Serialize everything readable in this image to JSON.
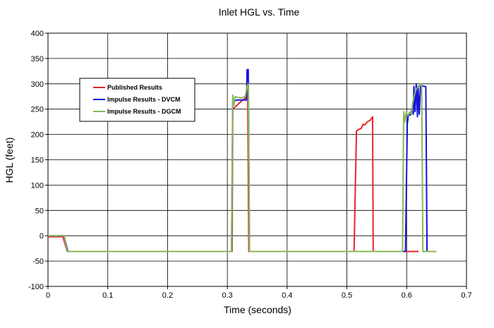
{
  "chart_data": {
    "type": "line",
    "title": "Inlet HGL vs. Time",
    "xlabel": "Time (seconds)",
    "ylabel": "HGL (feet)",
    "xlim": [
      0,
      0.7
    ],
    "ylim": [
      -100,
      400
    ],
    "xticks": [
      0,
      0.1,
      0.2,
      0.3,
      0.4,
      0.5,
      0.6,
      0.7
    ],
    "xtick_labels": [
      "0",
      "0.1",
      "0.2",
      "0.3",
      "0.4",
      "0.5",
      "0.6",
      "0.7"
    ],
    "yticks": [
      -100,
      -50,
      0,
      50,
      100,
      150,
      200,
      250,
      300,
      350,
      400
    ],
    "ytick_labels": [
      "-100",
      "-50",
      "0",
      "50",
      "100",
      "150",
      "200",
      "250",
      "300",
      "350",
      "400"
    ],
    "grid": true,
    "legend_position": "upper-left",
    "series": [
      {
        "name": "Published Results",
        "color": "#e8242a",
        "points": [
          [
            0,
            -2
          ],
          [
            0.025,
            -2
          ],
          [
            0.032,
            -31
          ],
          [
            0.308,
            -31
          ],
          [
            0.309,
            250
          ],
          [
            0.32,
            262
          ],
          [
            0.33,
            272
          ],
          [
            0.334,
            290
          ],
          [
            0.336,
            -31
          ],
          [
            0.512,
            -31
          ],
          [
            0.516,
            207
          ],
          [
            0.52,
            210
          ],
          [
            0.524,
            212
          ],
          [
            0.527,
            220
          ],
          [
            0.53,
            219
          ],
          [
            0.534,
            225
          ],
          [
            0.539,
            228
          ],
          [
            0.543,
            235
          ],
          [
            0.544,
            -31
          ],
          [
            0.6,
            -31
          ],
          [
            0.62,
            -31
          ]
        ]
      },
      {
        "name": "Impulse Results - DVCM",
        "color": "#1414e0",
        "points": [
          [
            0,
            0
          ],
          [
            0.027,
            0
          ],
          [
            0.033,
            -31
          ],
          [
            0.307,
            -31
          ],
          [
            0.309,
            265
          ],
          [
            0.316,
            268
          ],
          [
            0.332,
            268
          ],
          [
            0.333,
            328
          ],
          [
            0.335,
            328
          ],
          [
            0.337,
            -31
          ],
          [
            0.598,
            -31
          ],
          [
            0.601,
            220
          ],
          [
            0.603,
            240
          ],
          [
            0.606,
            238
          ],
          [
            0.609,
            250
          ],
          [
            0.611,
            240
          ],
          [
            0.612,
            295
          ],
          [
            0.614,
            245
          ],
          [
            0.616,
            300
          ],
          [
            0.618,
            235
          ],
          [
            0.619,
            295
          ],
          [
            0.621,
            240
          ],
          [
            0.623,
            295
          ],
          [
            0.627,
            296
          ],
          [
            0.632,
            294
          ],
          [
            0.634,
            -31
          ],
          [
            0.64,
            -31
          ]
        ]
      },
      {
        "name": "Impulse Results - DGCM",
        "color": "#88b857",
        "points": [
          [
            0,
            0
          ],
          [
            0.027,
            0
          ],
          [
            0.032,
            -31
          ],
          [
            0.307,
            -31
          ],
          [
            0.309,
            278
          ],
          [
            0.311,
            258
          ],
          [
            0.313,
            275
          ],
          [
            0.318,
            273
          ],
          [
            0.323,
            272
          ],
          [
            0.33,
            275
          ],
          [
            0.333,
            295
          ],
          [
            0.335,
            300
          ],
          [
            0.337,
            -31
          ],
          [
            0.59,
            -31
          ],
          [
            0.593,
            -31
          ],
          [
            0.595,
            245
          ],
          [
            0.597,
            225
          ],
          [
            0.599,
            242
          ],
          [
            0.602,
            238
          ],
          [
            0.605,
            244
          ],
          [
            0.608,
            240
          ],
          [
            0.61,
            262
          ],
          [
            0.613,
            278
          ],
          [
            0.616,
            290
          ],
          [
            0.62,
            295
          ],
          [
            0.623,
            300
          ],
          [
            0.625,
            297
          ],
          [
            0.627,
            -31
          ],
          [
            0.65,
            -31
          ]
        ]
      }
    ]
  }
}
